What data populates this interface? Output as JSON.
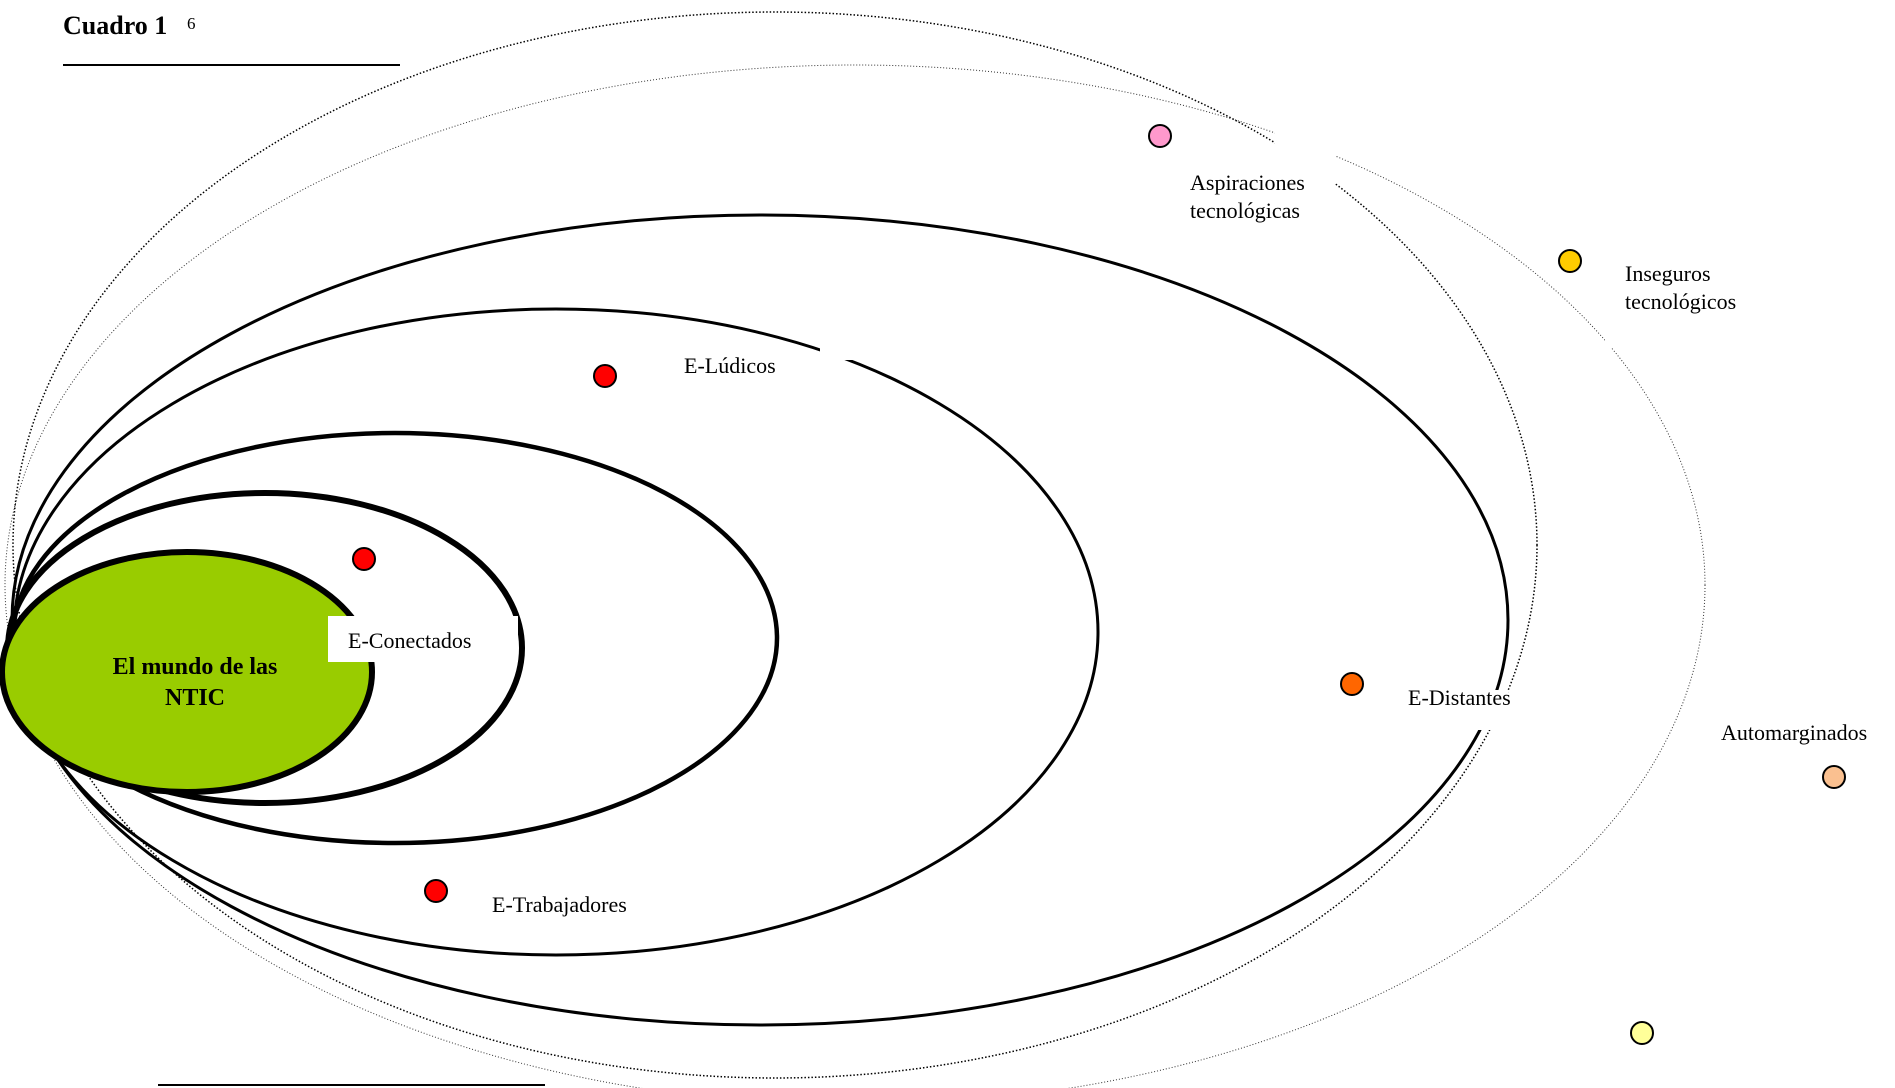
{
  "header": {
    "title": "Cuadro 1",
    "footnote_ref": "6"
  },
  "core": {
    "line1": "El mundo de las",
    "line2": "NTIC",
    "color": "#99cc00"
  },
  "groups": {
    "e_conectados": "E-Conectados",
    "e_ludicos": "E-Lúdicos",
    "e_trabajadores": "E-Trabajadores",
    "e_distantes": "E-Distantes",
    "aspiraciones": {
      "line1": "Aspiraciones",
      "line2": "tecnológicas"
    },
    "inseguros": {
      "line1": "Inseguros",
      "line2": "tecnológicos"
    },
    "automarginados": "Automarginados"
  },
  "dot_colors": {
    "red": "#ff0000",
    "orange": "#ff6600",
    "pink": "#ff99cc",
    "gold": "#ffcc00",
    "peach": "#fac090",
    "pale_yellow": "#ffff99"
  }
}
